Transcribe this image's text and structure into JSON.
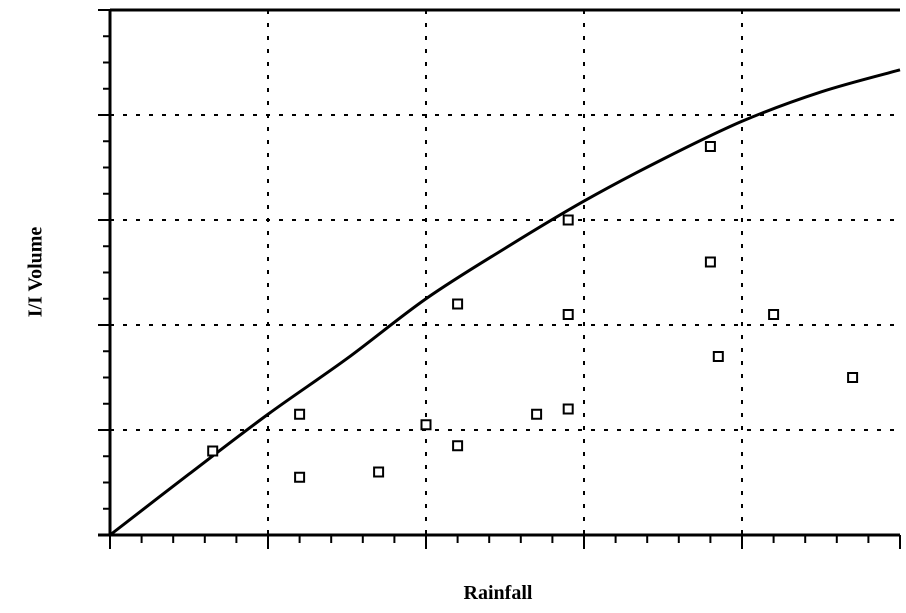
{
  "chart_data": {
    "type": "scatter",
    "title": "",
    "xlabel": "Rainfall",
    "ylabel": "I/I Volume",
    "xlim": [
      0,
      5
    ],
    "ylim": [
      0,
      5
    ],
    "grid": true,
    "x_major_ticks": [
      0,
      1,
      2,
      3,
      4,
      5
    ],
    "x_minor_step": 0.2,
    "y_major_ticks": [
      0,
      1,
      2,
      3,
      4,
      5
    ],
    "y_minor_step": 0.25,
    "series": [
      {
        "marker": "square",
        "points": [
          {
            "x": 0.65,
            "y": 0.8
          },
          {
            "x": 1.2,
            "y": 1.15
          },
          {
            "x": 1.2,
            "y": 0.55
          },
          {
            "x": 1.7,
            "y": 0.6
          },
          {
            "x": 2.0,
            "y": 1.05
          },
          {
            "x": 2.2,
            "y": 0.85
          },
          {
            "x": 2.2,
            "y": 2.2
          },
          {
            "x": 2.7,
            "y": 1.15
          },
          {
            "x": 2.9,
            "y": 1.2
          },
          {
            "x": 2.9,
            "y": 2.1
          },
          {
            "x": 2.9,
            "y": 3.0
          },
          {
            "x": 3.8,
            "y": 3.7
          },
          {
            "x": 3.8,
            "y": 2.6
          },
          {
            "x": 3.85,
            "y": 1.7
          },
          {
            "x": 4.2,
            "y": 2.1
          },
          {
            "x": 4.7,
            "y": 1.5
          }
        ]
      },
      {
        "line": "solid",
        "curve": [
          {
            "x": 0.0,
            "y": 0.0
          },
          {
            "x": 0.5,
            "y": 0.58
          },
          {
            "x": 1.0,
            "y": 1.15
          },
          {
            "x": 1.5,
            "y": 1.68
          },
          {
            "x": 2.0,
            "y": 2.25
          },
          {
            "x": 2.5,
            "y": 2.73
          },
          {
            "x": 3.0,
            "y": 3.18
          },
          {
            "x": 3.5,
            "y": 3.58
          },
          {
            "x": 4.0,
            "y": 3.94
          },
          {
            "x": 4.5,
            "y": 4.22
          },
          {
            "x": 5.0,
            "y": 4.43
          }
        ]
      }
    ],
    "colors": {
      "ink": "#000000",
      "background": "#ffffff"
    }
  }
}
